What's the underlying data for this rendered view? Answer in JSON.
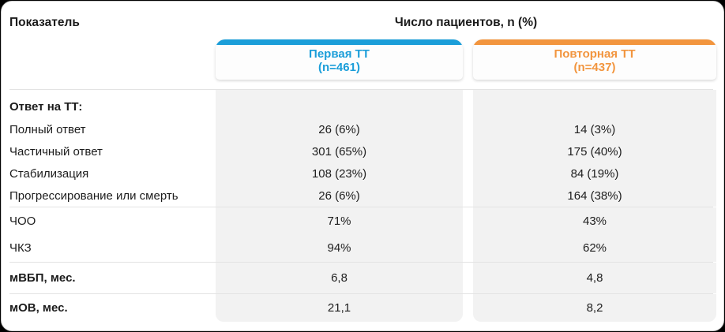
{
  "header": {
    "left_title": "Показатель",
    "right_title": "Число пациентов, n (%)"
  },
  "columns": [
    {
      "name": "Первая ТТ",
      "n_label": "(n=461)",
      "accent": "#1b9ed9"
    },
    {
      "name": "Повторная ТТ",
      "n_label": "(n=437)",
      "accent": "#f2953e"
    }
  ],
  "sections": [
    {
      "rows": [
        {
          "label": "Ответ на ТТ:",
          "bold": true,
          "values": [
            "",
            ""
          ]
        },
        {
          "label": "Полный ответ",
          "values": [
            "26 (6%)",
            "14 (3%)"
          ]
        },
        {
          "label": "Частичный ответ",
          "values": [
            "301 (65%)",
            "175 (40%)"
          ]
        },
        {
          "label": "Стабилизация",
          "values": [
            "108 (23%)",
            "84 (19%)"
          ]
        },
        {
          "label": "Прогрессирование или смерть",
          "values": [
            "26 (6%)",
            "164 (38%)"
          ]
        }
      ]
    },
    {
      "rows": [
        {
          "label": "ЧОО",
          "values": [
            "71%",
            "43%"
          ]
        },
        {
          "label": "ЧКЗ",
          "values": [
            "94%",
            "62%"
          ]
        }
      ]
    },
    {
      "rows": [
        {
          "label": "мВБП, мес.",
          "bold": true,
          "values": [
            "6,8",
            "4,8"
          ]
        }
      ]
    },
    {
      "rows": [
        {
          "label": "мОВ, мес.",
          "bold": true,
          "values": [
            "21,1",
            "8,2"
          ]
        }
      ]
    }
  ],
  "chart_data": {
    "type": "table",
    "title": "Число пациентов, n (%)",
    "corner_label": "Показатель",
    "columns": [
      "Первая ТТ (n=461)",
      "Повторная ТТ (n=437)"
    ],
    "rows": [
      [
        "Ответ на ТТ:",
        "",
        ""
      ],
      [
        "Полный ответ",
        "26 (6%)",
        "14 (3%)"
      ],
      [
        "Частичный ответ",
        "301 (65%)",
        "175 (40%)"
      ],
      [
        "Стабилизация",
        "108 (23%)",
        "84 (19%)"
      ],
      [
        "Прогрессирование или смерть",
        "26 (6%)",
        "164 (38%)"
      ],
      [
        "ЧОО",
        "71%",
        "43%"
      ],
      [
        "ЧКЗ",
        "94%",
        "62%"
      ],
      [
        "мВБП, мес.",
        "6,8",
        "4,8"
      ],
      [
        "мОВ, мес.",
        "21,1",
        "8,2"
      ]
    ],
    "accent_colors": [
      "#1b9ed9",
      "#f2953e"
    ],
    "layout": {
      "value_column_background": "#f2f2f2",
      "separator_color": "#e3e3e3"
    }
  }
}
